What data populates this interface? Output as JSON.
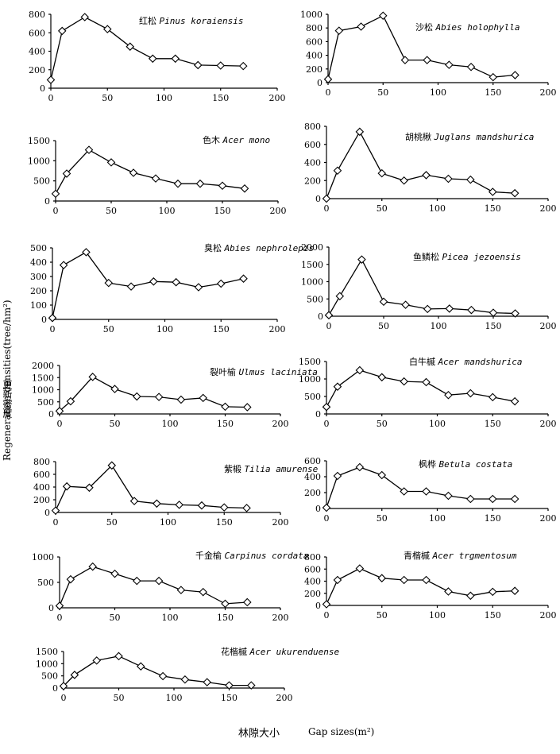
{
  "ylabel_en": "Regeneration densities(tree/hm²)",
  "ylabel_cn": "更新密度",
  "xlabel_cn": "林隙大小",
  "xlabel_en": "Gap sizes(m²)",
  "chart_data": [
    {
      "type": "line",
      "title_cn": "红松",
      "title_latin": "Pinus koraiensis",
      "x": [
        0,
        10,
        30,
        50,
        70,
        90,
        110,
        130,
        150,
        170
      ],
      "y": [
        90,
        620,
        770,
        640,
        450,
        320,
        320,
        250,
        245,
        240
      ],
      "ylim": [
        0,
        800
      ],
      "yticks": [
        0,
        200,
        400,
        600,
        800
      ],
      "xlim": [
        0,
        200
      ],
      "xticks": [
        0,
        50,
        100,
        150,
        200
      ]
    },
    {
      "type": "line",
      "title_cn": "沙松",
      "title_latin": "Abies holophylla",
      "x": [
        0,
        10,
        30,
        50,
        70,
        90,
        110,
        130,
        150,
        170
      ],
      "y": [
        50,
        760,
        820,
        980,
        330,
        330,
        260,
        230,
        80,
        110
      ],
      "ylim": [
        0,
        1000
      ],
      "yticks": [
        0,
        200,
        400,
        600,
        800,
        1000
      ],
      "xlim": [
        0,
        200
      ],
      "xticks": [
        0,
        50,
        100,
        150,
        200
      ]
    },
    {
      "type": "line",
      "title_cn": "色木",
      "title_latin": "Acer mono",
      "x": [
        0,
        10,
        30,
        50,
        70,
        90,
        110,
        130,
        150,
        170
      ],
      "y": [
        180,
        680,
        1270,
        960,
        700,
        560,
        430,
        430,
        380,
        310
      ],
      "ylim": [
        0,
        1500
      ],
      "yticks": [
        0,
        500,
        1000,
        1500
      ],
      "xlim": [
        0,
        200
      ],
      "xticks": [
        0,
        50,
        100,
        150,
        200
      ]
    },
    {
      "type": "line",
      "title_cn": "胡桃楸",
      "title_latin": "Juglans mandshurica",
      "x": [
        0,
        10,
        30,
        50,
        70,
        90,
        110,
        130,
        150,
        170
      ],
      "y": [
        0,
        310,
        740,
        280,
        200,
        260,
        220,
        210,
        75,
        60
      ],
      "ylim": [
        0,
        800
      ],
      "yticks": [
        0,
        200,
        400,
        600,
        800
      ],
      "xlim": [
        0,
        200
      ],
      "xticks": [
        0,
        50,
        100,
        150,
        200
      ]
    },
    {
      "type": "line",
      "title_cn": "臭松",
      "title_latin": "Abies nephrolepis",
      "x": [
        0,
        10,
        30,
        50,
        70,
        90,
        110,
        130,
        150,
        170
      ],
      "y": [
        10,
        380,
        470,
        255,
        230,
        265,
        260,
        225,
        250,
        285
      ],
      "ylim": [
        0,
        500
      ],
      "yticks": [
        0,
        100,
        200,
        300,
        400,
        500
      ],
      "xlim": [
        0,
        200
      ],
      "xticks": [
        0,
        50,
        100,
        150,
        200
      ]
    },
    {
      "type": "line",
      "title_cn": "鱼鳞松",
      "title_latin": "Picea jezoensis",
      "x": [
        0,
        10,
        30,
        50,
        70,
        90,
        110,
        130,
        150,
        170
      ],
      "y": [
        30,
        580,
        1640,
        420,
        330,
        210,
        220,
        180,
        100,
        80
      ],
      "ylim": [
        0,
        2000
      ],
      "yticks": [
        0,
        500,
        1000,
        1500,
        2000
      ],
      "xlim": [
        0,
        200
      ],
      "xticks": [
        0,
        50,
        100,
        150,
        200
      ]
    },
    {
      "type": "line",
      "title_cn": "裂叶榆",
      "title_latin": "Ulmus laciniata",
      "x": [
        0,
        10,
        30,
        50,
        70,
        90,
        110,
        130,
        150,
        170
      ],
      "y": [
        120,
        520,
        1530,
        1030,
        720,
        700,
        590,
        660,
        300,
        280
      ],
      "ylim": [
        0,
        2000
      ],
      "yticks": [
        0,
        500,
        1000,
        1500,
        2000
      ],
      "xlim": [
        0,
        200
      ],
      "xticks": [
        0,
        50,
        100,
        150,
        200
      ]
    },
    {
      "type": "line",
      "title_cn": "白牛槭",
      "title_latin": "Acer mandshurica",
      "x": [
        0,
        10,
        30,
        50,
        70,
        90,
        110,
        130,
        150,
        170
      ],
      "y": [
        200,
        780,
        1250,
        1050,
        930,
        910,
        540,
        590,
        480,
        360
      ],
      "ylim": [
        0,
        1500
      ],
      "yticks": [
        0,
        500,
        1000,
        1500
      ],
      "xlim": [
        0,
        200
      ],
      "xticks": [
        0,
        50,
        100,
        150,
        200
      ]
    },
    {
      "type": "line",
      "title_cn": "紫椴",
      "title_latin": "Tilia amurense",
      "x": [
        0,
        10,
        30,
        50,
        70,
        90,
        110,
        130,
        150,
        170
      ],
      "y": [
        30,
        410,
        390,
        740,
        180,
        140,
        120,
        110,
        80,
        70
      ],
      "ylim": [
        0,
        800
      ],
      "yticks": [
        0,
        200,
        400,
        600,
        800
      ],
      "xlim": [
        0,
        200
      ],
      "xticks": [
        0,
        50,
        100,
        150,
        200
      ]
    },
    {
      "type": "line",
      "title_cn": "枫桦",
      "title_latin": "Betula costata",
      "x": [
        0,
        10,
        30,
        50,
        70,
        90,
        110,
        130,
        150,
        170
      ],
      "y": [
        10,
        410,
        520,
        420,
        215,
        215,
        160,
        120,
        120,
        120
      ],
      "ylim": [
        0,
        600
      ],
      "yticks": [
        0,
        200,
        400,
        600
      ],
      "xlim": [
        0,
        200
      ],
      "xticks": [
        0,
        50,
        100,
        150,
        200
      ]
    },
    {
      "type": "line",
      "title_cn": "千金榆",
      "title_latin": "Carpinus cordata",
      "x": [
        0,
        10,
        30,
        50,
        70,
        90,
        110,
        130,
        150,
        170
      ],
      "y": [
        40,
        560,
        810,
        670,
        530,
        530,
        350,
        310,
        80,
        110
      ],
      "ylim": [
        0,
        1000
      ],
      "yticks": [
        0,
        500,
        1000
      ],
      "xlim": [
        0,
        200
      ],
      "xticks": [
        0,
        50,
        100,
        150,
        200
      ]
    },
    {
      "type": "line",
      "title_cn": "青楷槭",
      "title_latin": "Acer trgmentosum",
      "x": [
        0,
        10,
        30,
        50,
        70,
        90,
        110,
        130,
        150,
        170
      ],
      "y": [
        20,
        420,
        610,
        450,
        420,
        420,
        230,
        160,
        225,
        240
      ],
      "ylim": [
        0,
        800
      ],
      "yticks": [
        0,
        200,
        400,
        600,
        800
      ],
      "xlim": [
        0,
        200
      ],
      "xticks": [
        0,
        50,
        100,
        150,
        200
      ]
    },
    {
      "type": "line",
      "title_cn": "花楷槭",
      "title_latin": "Acer ukurenduense",
      "x": [
        0,
        10,
        30,
        50,
        70,
        90,
        110,
        130,
        150,
        170
      ],
      "y": [
        80,
        540,
        1130,
        1310,
        890,
        490,
        350,
        240,
        110,
        110
      ],
      "ylim": [
        0,
        1500
      ],
      "yticks": [
        0,
        500,
        1000,
        1500
      ],
      "xlim": [
        0,
        200
      ],
      "xticks": [
        0,
        50,
        100,
        150,
        200
      ]
    }
  ]
}
